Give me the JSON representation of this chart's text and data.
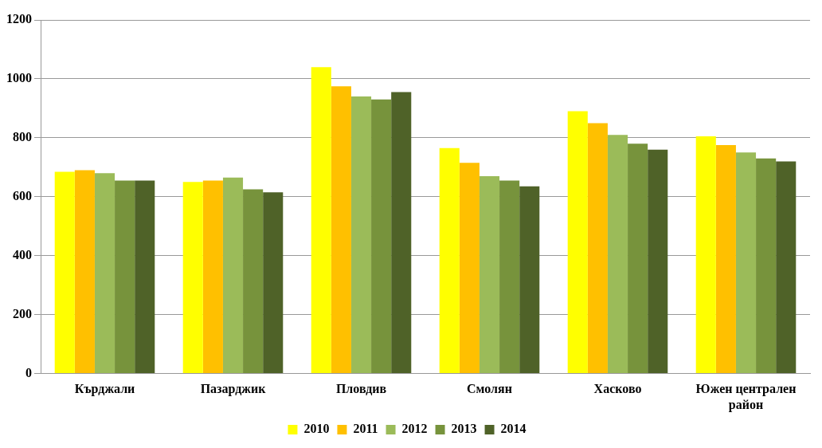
{
  "chart_data": {
    "type": "bar",
    "categories": [
      "Кърджали",
      "Пазарджик",
      "Пловдив",
      "Смолян",
      "Хасково",
      "Южен централен район"
    ],
    "series": [
      {
        "name": "2010",
        "color": "#ffff00",
        "values": [
          685,
          650,
          1040,
          765,
          890,
          805
        ]
      },
      {
        "name": "2011",
        "color": "#ffc000",
        "values": [
          690,
          655,
          975,
          715,
          850,
          775
        ]
      },
      {
        "name": "2012",
        "color": "#9bbb59",
        "values": [
          680,
          665,
          940,
          670,
          810,
          750
        ]
      },
      {
        "name": "2013",
        "color": "#77933c",
        "values": [
          655,
          625,
          930,
          655,
          780,
          730
        ]
      },
      {
        "name": "2014",
        "color": "#4f6228",
        "values": [
          655,
          615,
          955,
          635,
          760,
          720
        ]
      }
    ],
    "ylim": [
      0,
      1200
    ],
    "yticks": [
      0,
      200,
      400,
      600,
      800,
      1000,
      1200
    ],
    "grid": "y",
    "legend": "bottom"
  }
}
